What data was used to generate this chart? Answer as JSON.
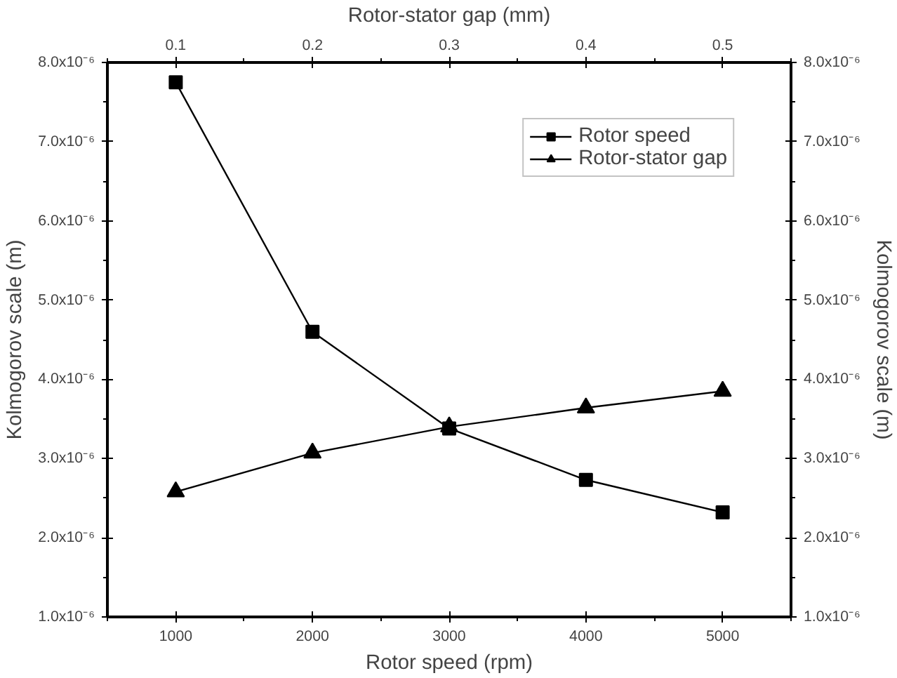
{
  "chart_data": {
    "type": "line",
    "xlabel": "Rotor speed (rpm)",
    "x2label": "Rotor-stator gap (mm)",
    "ylabel": "Kolmogorov scale (m)",
    "y2label": "Kolmogorov scale (m)",
    "x": [
      1000,
      2000,
      3000,
      4000,
      5000
    ],
    "xlim": [
      500,
      5500
    ],
    "xticks": [
      1000,
      2000,
      3000,
      4000,
      5000
    ],
    "x2lim": [
      0.05,
      0.55
    ],
    "x2ticks": [
      0.1,
      0.2,
      0.3,
      0.4,
      0.5
    ],
    "ylim": [
      1e-06,
      8e-06
    ],
    "yticks": [
      {
        "value": 1e-06,
        "label": "1.0x10⁻⁶"
      },
      {
        "value": 2e-06,
        "label": "2.0x10⁻⁶"
      },
      {
        "value": 3e-06,
        "label": "3.0x10⁻⁶"
      },
      {
        "value": 4e-06,
        "label": "4.0x10⁻⁶"
      },
      {
        "value": 5e-06,
        "label": "5.0x10⁻⁶"
      },
      {
        "value": 6e-06,
        "label": "6.0x10⁻⁶"
      },
      {
        "value": 7e-06,
        "label": "7.0x10⁻⁶"
      },
      {
        "value": 8e-06,
        "label": "8.0x10⁻⁶"
      }
    ],
    "y2lim": [
      1e-06,
      8e-06
    ],
    "y2ticks": [
      {
        "value": 1e-06,
        "label": "1.0x10⁻⁶"
      },
      {
        "value": 2e-06,
        "label": "2.0x10⁻⁶"
      },
      {
        "value": 3e-06,
        "label": "3.0x10⁻⁶"
      },
      {
        "value": 4e-06,
        "label": "4.0x10⁻⁶"
      },
      {
        "value": 5e-06,
        "label": "5.0x10⁻⁶"
      },
      {
        "value": 6e-06,
        "label": "6.0x10⁻⁶"
      },
      {
        "value": 7e-06,
        "label": "7.0x10⁻⁶"
      },
      {
        "value": 8e-06,
        "label": "8.0x10⁻⁶"
      }
    ],
    "grid": false,
    "legend": "top right",
    "line_style": "solid",
    "series": [
      {
        "name": "Rotor speed",
        "color": "#000000",
        "marker": "square",
        "values": [
          7.75e-06,
          4.6e-06,
          3.38e-06,
          2.73e-06,
          2.32e-06
        ]
      },
      {
        "name": "Rotor-stator gap",
        "color": "#000000",
        "marker": "triangle",
        "axis": "x2",
        "x": [
          0.1,
          0.2,
          0.3,
          0.4,
          0.5
        ],
        "values": [
          2.58e-06,
          3.07e-06,
          3.4e-06,
          3.64e-06,
          3.85e-06
        ]
      }
    ]
  }
}
